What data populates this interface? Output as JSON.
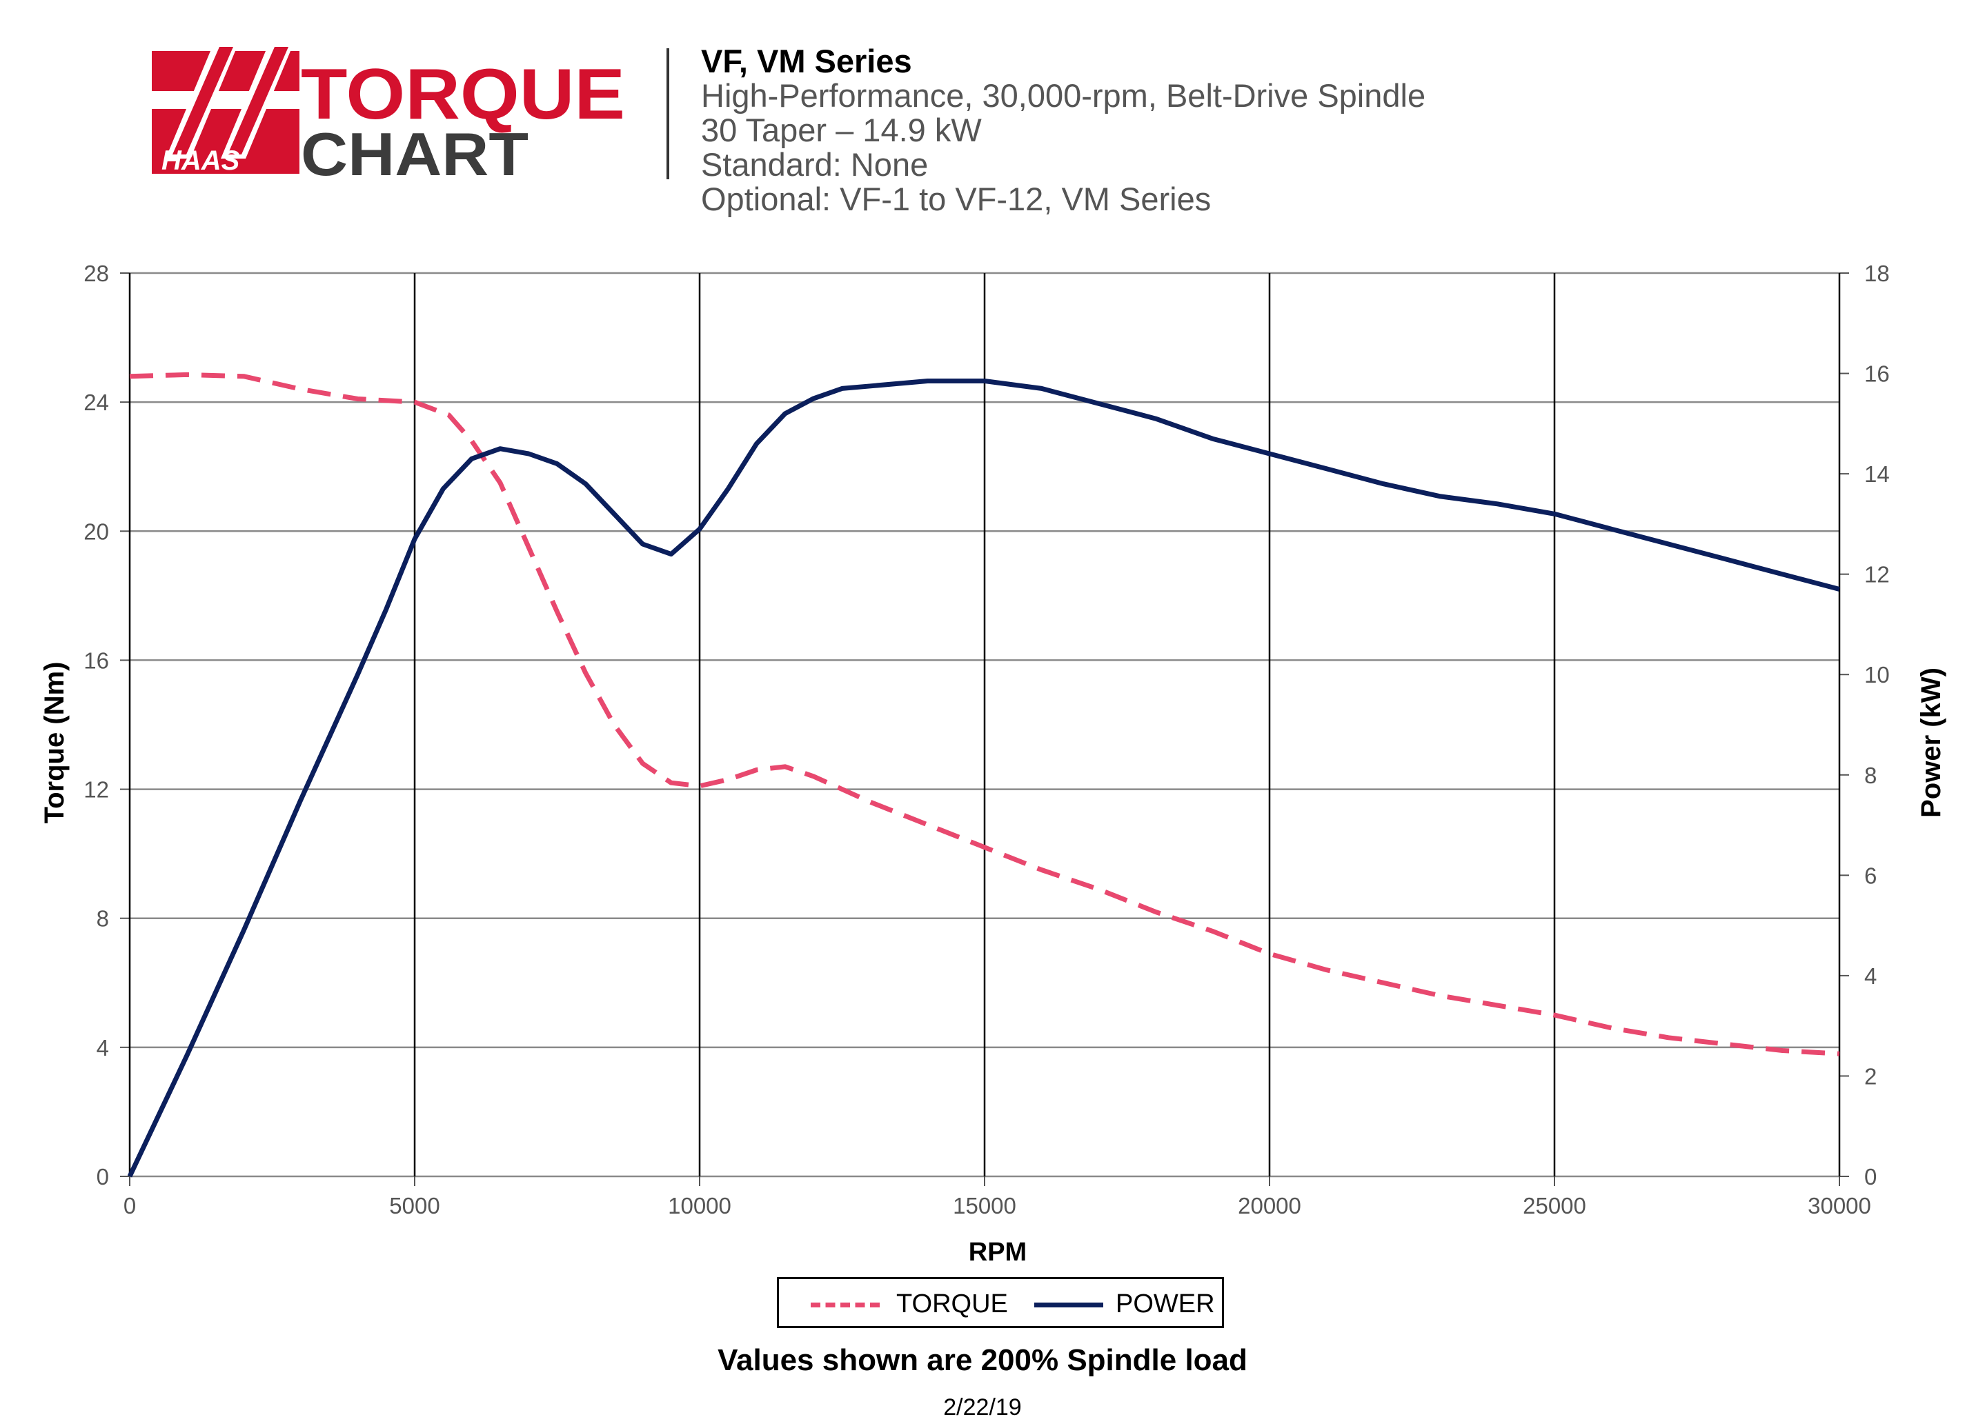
{
  "logo": {
    "brand_text": "HAAS",
    "title_line1": "TORQUE",
    "title_line2": "CHART",
    "colors": {
      "red": "#d4112e",
      "dark": "#3c3c3c"
    }
  },
  "header": {
    "series": "VF, VM Series",
    "spindle": "High-Performance, 30,000-rpm, Belt-Drive Spindle",
    "taper": "30 Taper – 14.9 kW",
    "standard": "Standard: None",
    "optional": "Optional: VF-1 to VF-12, VM Series"
  },
  "chart_data": {
    "type": "line",
    "title": "",
    "xlabel": "RPM",
    "ylabel": "Torque (Nm)",
    "y2label": "Power (kW)",
    "xlim": [
      0,
      30000
    ],
    "ylim": [
      0,
      28
    ],
    "y2lim": [
      0,
      18
    ],
    "x_ticks": [
      0,
      5000,
      10000,
      15000,
      20000,
      25000,
      30000
    ],
    "y_ticks": [
      0,
      4,
      8,
      12,
      16,
      20,
      24,
      28
    ],
    "y2_ticks": [
      0,
      2,
      4,
      6,
      8,
      10,
      12,
      14,
      16,
      18
    ],
    "grid": true,
    "legend_position": "bottom-center",
    "series": [
      {
        "name": "TORQUE",
        "axis": "left",
        "color": "#e8486e",
        "style": "dashed",
        "points": [
          [
            0,
            24.8
          ],
          [
            1000,
            24.85
          ],
          [
            2000,
            24.8
          ],
          [
            3000,
            24.4
          ],
          [
            4000,
            24.1
          ],
          [
            5000,
            24.0
          ],
          [
            5600,
            23.6
          ],
          [
            6000,
            22.8
          ],
          [
            6500,
            21.5
          ],
          [
            7000,
            19.5
          ],
          [
            7500,
            17.5
          ],
          [
            8000,
            15.6
          ],
          [
            8500,
            14.0
          ],
          [
            9000,
            12.8
          ],
          [
            9500,
            12.2
          ],
          [
            10000,
            12.1
          ],
          [
            10500,
            12.3
          ],
          [
            11000,
            12.6
          ],
          [
            11500,
            12.7
          ],
          [
            12000,
            12.4
          ],
          [
            13000,
            11.6
          ],
          [
            14000,
            10.9
          ],
          [
            15000,
            10.2
          ],
          [
            16000,
            9.5
          ],
          [
            17000,
            8.9
          ],
          [
            18000,
            8.2
          ],
          [
            19000,
            7.6
          ],
          [
            20000,
            6.9
          ],
          [
            21000,
            6.4
          ],
          [
            22000,
            6.0
          ],
          [
            23000,
            5.6
          ],
          [
            24000,
            5.3
          ],
          [
            25000,
            5.0
          ],
          [
            26000,
            4.6
          ],
          [
            27000,
            4.3
          ],
          [
            28000,
            4.1
          ],
          [
            29000,
            3.9
          ],
          [
            30000,
            3.8
          ]
        ]
      },
      {
        "name": "POWER",
        "axis": "right",
        "color": "#0b1f5c",
        "style": "solid",
        "points": [
          [
            0,
            0.0
          ],
          [
            1000,
            2.4
          ],
          [
            2000,
            4.9
          ],
          [
            3000,
            7.5
          ],
          [
            4000,
            10.0
          ],
          [
            4500,
            11.3
          ],
          [
            5000,
            12.7
          ],
          [
            5500,
            13.7
          ],
          [
            6000,
            14.3
          ],
          [
            6500,
            14.5
          ],
          [
            7000,
            14.4
          ],
          [
            7500,
            14.2
          ],
          [
            8000,
            13.8
          ],
          [
            8500,
            13.2
          ],
          [
            9000,
            12.6
          ],
          [
            9500,
            12.4
          ],
          [
            10000,
            12.9
          ],
          [
            10500,
            13.7
          ],
          [
            11000,
            14.6
          ],
          [
            11500,
            15.2
          ],
          [
            12000,
            15.5
          ],
          [
            12500,
            15.7
          ],
          [
            13000,
            15.75
          ],
          [
            13500,
            15.8
          ],
          [
            14000,
            15.85
          ],
          [
            15000,
            15.85
          ],
          [
            16000,
            15.7
          ],
          [
            17000,
            15.4
          ],
          [
            18000,
            15.1
          ],
          [
            19000,
            14.7
          ],
          [
            20000,
            14.4
          ],
          [
            21000,
            14.1
          ],
          [
            22000,
            13.8
          ],
          [
            23000,
            13.55
          ],
          [
            24000,
            13.4
          ],
          [
            25000,
            13.2
          ],
          [
            26000,
            12.9
          ],
          [
            27000,
            12.6
          ],
          [
            28000,
            12.3
          ],
          [
            29000,
            12.0
          ],
          [
            30000,
            11.7
          ]
        ]
      }
    ]
  },
  "legend": {
    "torque_label": "TORQUE",
    "power_label": "POWER"
  },
  "footnote": "Values shown are 200% Spindle load",
  "date": "2/22/19"
}
